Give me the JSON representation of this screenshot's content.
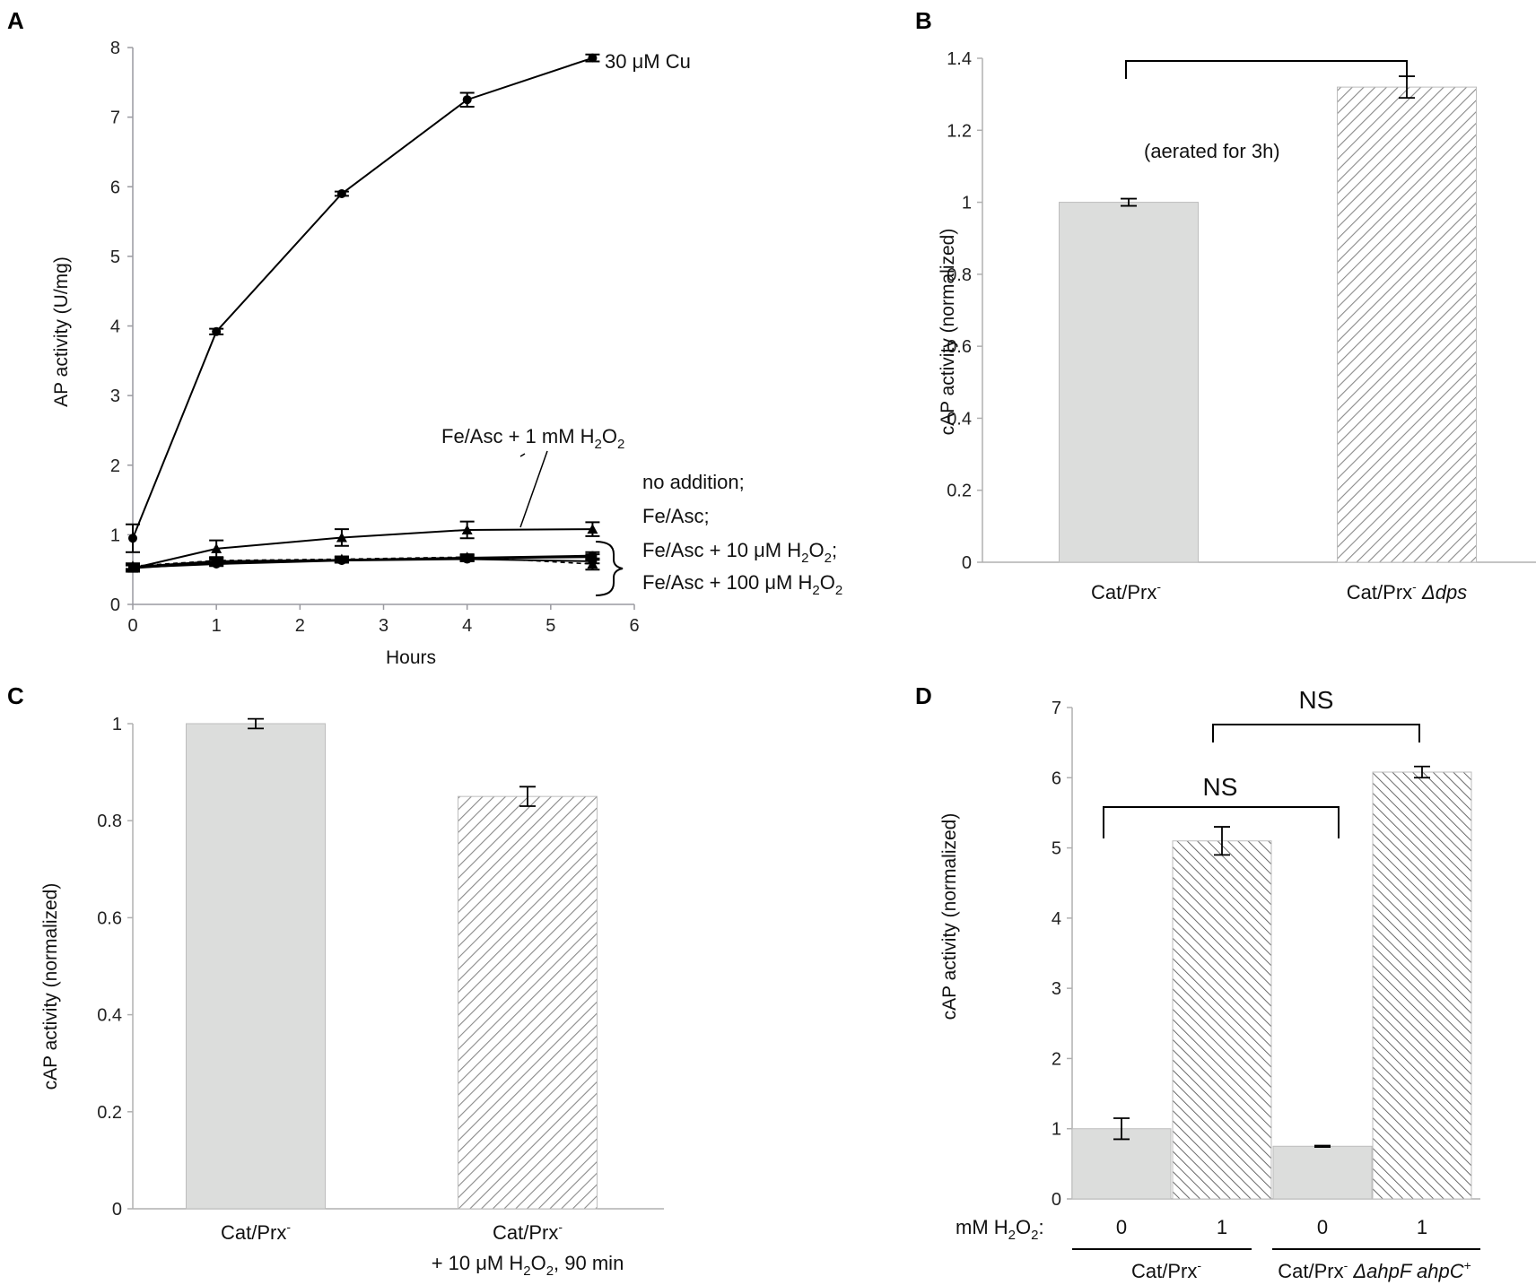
{
  "panels": {
    "A": {
      "letter": "A"
    },
    "B": {
      "letter": "B"
    },
    "C": {
      "letter": "C"
    },
    "D": {
      "letter": "D"
    }
  },
  "colors": {
    "solid_bar": "#dcdddc",
    "hatch_line": "#8a8a8a",
    "axis": "#aaaaaa",
    "line": "#000000"
  },
  "chart_data": [
    {
      "panel": "A",
      "type": "line",
      "xlabel": "Hours",
      "ylabel": "AP activity (U/mg)",
      "xlim": [
        0,
        6
      ],
      "ylim": [
        0,
        8
      ],
      "xticks": [
        "0",
        "1",
        "2",
        "3",
        "4",
        "5",
        "6"
      ],
      "yticks": [
        "0",
        "1",
        "2",
        "3",
        "4",
        "5",
        "6",
        "7",
        "8"
      ],
      "series": [
        {
          "name": "30 μM Cu",
          "x": [
            0,
            1,
            2.5,
            4,
            5.5
          ],
          "y": [
            0.95,
            3.92,
            5.9,
            7.25,
            7.85
          ],
          "err": [
            0.2,
            0.04,
            0.03,
            0.1,
            0.05
          ],
          "marker": "circle",
          "dash": false
        },
        {
          "name": "Fe/Asc + 1 mM H2O2",
          "x": [
            0,
            1,
            2.5,
            4,
            5.5
          ],
          "y": [
            0.52,
            0.8,
            0.96,
            1.07,
            1.08
          ],
          "err": [
            0.05,
            0.12,
            0.12,
            0.12,
            0.1
          ],
          "marker": "triangle",
          "dash": false
        },
        {
          "name": "no addition",
          "x": [
            0,
            1,
            2.5,
            4,
            5.5
          ],
          "y": [
            0.52,
            0.6,
            0.64,
            0.66,
            0.68
          ],
          "err": [
            0.04,
            0.04,
            0.04,
            0.04,
            0.04
          ],
          "marker": "circle",
          "dash": false
        },
        {
          "name": "Fe/Asc",
          "x": [
            0,
            1,
            2.5,
            4,
            5.5
          ],
          "y": [
            0.53,
            0.58,
            0.63,
            0.65,
            0.62
          ],
          "err": [
            0.03,
            0.03,
            0.03,
            0.03,
            0.03
          ],
          "marker": "circle",
          "dash": false
        },
        {
          "name": "Fe/Asc + 10 μM H2O2",
          "x": [
            0,
            1,
            2.5,
            4,
            5.5
          ],
          "y": [
            0.54,
            0.62,
            0.64,
            0.67,
            0.7
          ],
          "err": [
            0.04,
            0.04,
            0.04,
            0.04,
            0.05
          ],
          "marker": "circle",
          "dash": false
        },
        {
          "name": "Fe/Asc + 100 μM H2O2",
          "x": [
            0,
            1,
            2.5,
            4,
            5.5
          ],
          "y": [
            0.55,
            0.63,
            0.65,
            0.68,
            0.58
          ],
          "err": [
            0.04,
            0.04,
            0.04,
            0.04,
            0.08
          ],
          "marker": "triangle",
          "dash": true
        }
      ],
      "labels": {
        "cu": "30 μM Cu",
        "fe_h1": "Fe/Asc + 1 mM H",
        "fe_h1_tail": "O",
        "no_addition": "no addition;",
        "fe_asc": "Fe/Asc;",
        "fe_h10": "Fe/Asc + 10 μM H",
        "fe_h10_tail": "O",
        "fe_h100": "Fe/Asc + 100 μM H",
        "fe_h100_tail": "O",
        "sub2": "2"
      }
    },
    {
      "panel": "B",
      "type": "bar",
      "ylabel": "cAP activity (normalized)",
      "ylim": [
        0,
        1.4
      ],
      "yticks": [
        "0",
        "0.2",
        "0.4",
        "0.6",
        "0.8",
        "1",
        "1.2",
        "1.4"
      ],
      "categories": [
        "Cat/Prx",
        "Cat/Prx"
      ],
      "category_suffix": [
        "",
        "Δdps"
      ],
      "values": [
        1.0,
        1.32
      ],
      "errors": [
        0.01,
        0.03
      ],
      "fill": [
        "solid",
        "hatch"
      ],
      "annotation": "(aerated for 3h)",
      "superscript": "-"
    },
    {
      "panel": "C",
      "type": "bar",
      "ylabel": "cAP activity (normalized)",
      "ylim": [
        0,
        1.0
      ],
      "yticks": [
        "0",
        "0.2",
        "0.4",
        "0.6",
        "0.8",
        "1"
      ],
      "categories": [
        "Cat/Prx",
        "Cat/Prx"
      ],
      "category_line2": [
        "",
        "+ 10 μM H"
      ],
      "category_line2_tail": [
        "",
        "O"
      ],
      "category_line2_end": [
        "",
        ", 90 min"
      ],
      "values": [
        1.0,
        0.85
      ],
      "errors": [
        0.01,
        0.02
      ],
      "fill": [
        "solid",
        "hatch"
      ],
      "superscript": "-",
      "sub2": "2"
    },
    {
      "panel": "D",
      "type": "bar",
      "ylabel": "cAP activity (normalized)",
      "ylim": [
        0,
        7
      ],
      "yticks": [
        "0",
        "1",
        "2",
        "3",
        "4",
        "5",
        "6",
        "7"
      ],
      "h2o2_label": "mM H",
      "h2o2_label_tail": "O",
      "h2o2_label_end": ":",
      "dose_labels": [
        "0",
        "1",
        "0",
        "1"
      ],
      "values": [
        1.0,
        5.1,
        0.75,
        6.08
      ],
      "errors": [
        0.15,
        0.2,
        0.01,
        0.08
      ],
      "fill": [
        "solid",
        "hatch",
        "solid",
        "hatch"
      ],
      "groups": [
        "Cat/Prx",
        "Cat/Prx"
      ],
      "group_suffix": [
        "",
        "ΔahpF ahpC"
      ],
      "group_suffix_sup": [
        "",
        "+"
      ],
      "superscript": "-",
      "sub2": "2",
      "significance": [
        "NS",
        "NS"
      ]
    }
  ]
}
